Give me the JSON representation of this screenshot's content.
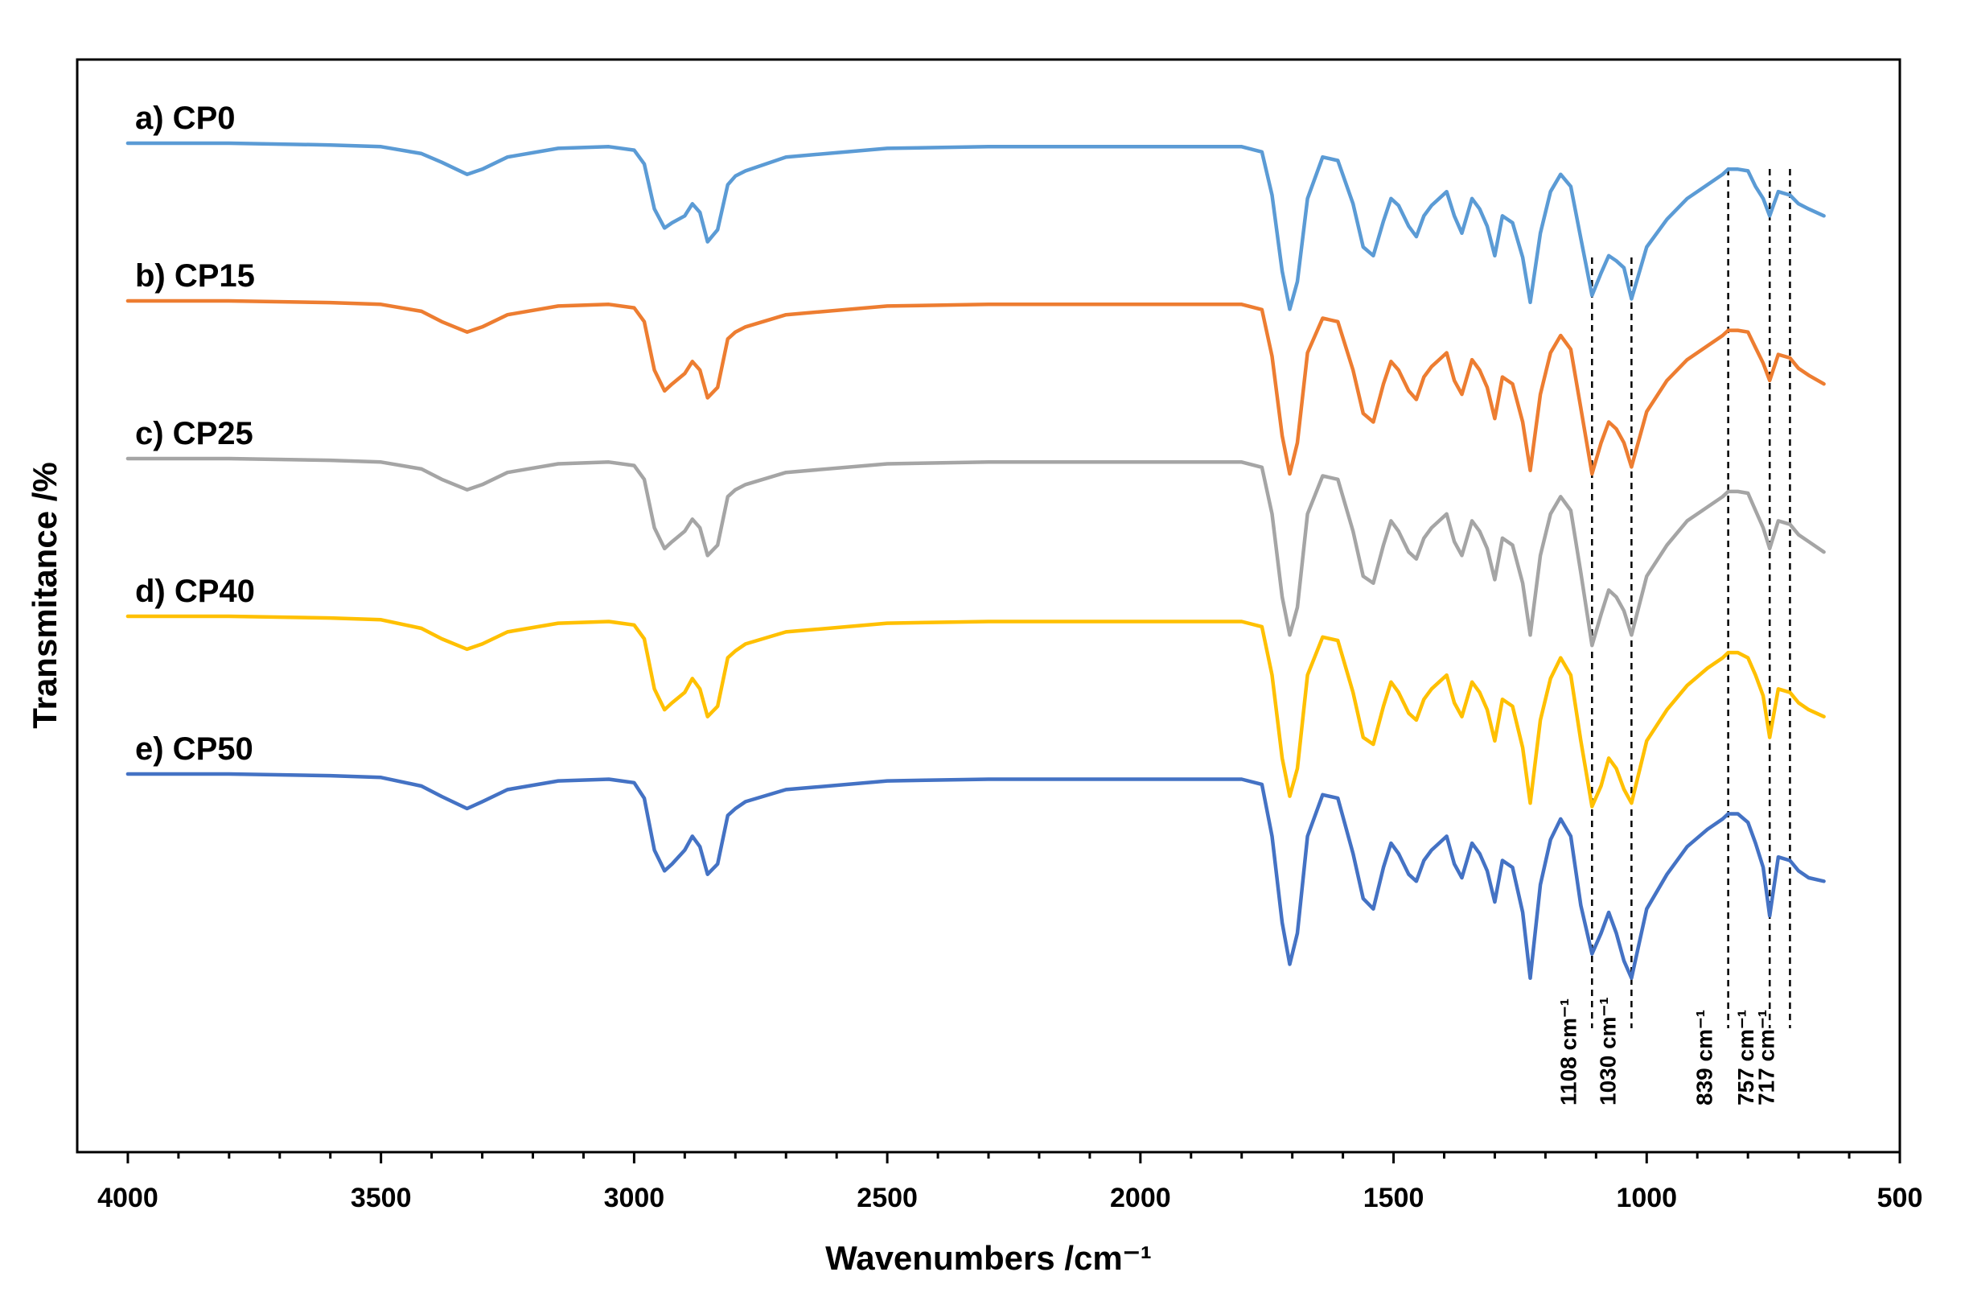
{
  "chart_data": {
    "type": "line",
    "title": "",
    "xlabel": "Wavenumbers /cm⁻¹",
    "ylabel": "Transmitance /%",
    "xlim": [
      4000,
      500
    ],
    "x_reversed": true,
    "x_ticks": [
      4000,
      3500,
      3000,
      2500,
      2000,
      1500,
      1000,
      500
    ],
    "y_ticks_shown": false,
    "grid": false,
    "legend": "none",
    "series": [
      {
        "name": "a) CP0",
        "color": "#5B9BD5"
      },
      {
        "name": "b) CP15",
        "color": "#ED7D31"
      },
      {
        "name": "c) CP25",
        "color": "#A5A5A5"
      },
      {
        "name": "d) CP40",
        "color": "#FFC000"
      },
      {
        "name": "e) CP50",
        "color": "#4472C4"
      }
    ],
    "x": [
      4000,
      3800,
      3600,
      3500,
      3420,
      3380,
      3330,
      3300,
      3250,
      3150,
      3050,
      3000,
      2980,
      2960,
      2940,
      2925,
      2900,
      2885,
      2870,
      2855,
      2835,
      2815,
      2800,
      2780,
      2700,
      2500,
      2300,
      2000,
      1800,
      1760,
      1740,
      1720,
      1705,
      1690,
      1670,
      1640,
      1610,
      1580,
      1560,
      1540,
      1520,
      1505,
      1490,
      1470,
      1455,
      1440,
      1425,
      1410,
      1395,
      1380,
      1365,
      1345,
      1330,
      1315,
      1300,
      1285,
      1265,
      1245,
      1230,
      1210,
      1190,
      1170,
      1150,
      1130,
      1108,
      1090,
      1075,
      1060,
      1045,
      1030,
      1000,
      960,
      920,
      880,
      850,
      839,
      820,
      800,
      785,
      770,
      757,
      740,
      717,
      700,
      680,
      650
    ],
    "baseline_offsets": [
      0.0,
      1.0,
      2.0,
      3.0,
      4.0
    ],
    "profiles": {
      "CP0": [
        0,
        0,
        0.01,
        0.02,
        0.06,
        0.11,
        0.18,
        0.15,
        0.08,
        0.03,
        0.02,
        0.04,
        0.12,
        0.38,
        0.49,
        0.46,
        0.42,
        0.35,
        0.4,
        0.57,
        0.5,
        0.24,
        0.19,
        0.16,
        0.08,
        0.03,
        0.02,
        0.02,
        0.02,
        0.05,
        0.3,
        0.74,
        0.96,
        0.8,
        0.32,
        0.08,
        0.1,
        0.35,
        0.6,
        0.65,
        0.45,
        0.32,
        0.36,
        0.48,
        0.54,
        0.42,
        0.36,
        0.32,
        0.28,
        0.42,
        0.52,
        0.32,
        0.38,
        0.48,
        0.65,
        0.42,
        0.46,
        0.66,
        0.92,
        0.52,
        0.28,
        0.18,
        0.25,
        0.55,
        0.88,
        0.75,
        0.65,
        0.68,
        0.72,
        0.9,
        0.6,
        0.44,
        0.32,
        0.24,
        0.18,
        0.15,
        0.15,
        0.16,
        0.25,
        0.32,
        0.42,
        0.28,
        0.3,
        0.35,
        0.38,
        0.42
      ],
      "CP15": [
        0,
        0,
        0.01,
        0.02,
        0.06,
        0.12,
        0.18,
        0.15,
        0.08,
        0.03,
        0.02,
        0.04,
        0.12,
        0.4,
        0.52,
        0.48,
        0.42,
        0.35,
        0.4,
        0.56,
        0.5,
        0.22,
        0.18,
        0.15,
        0.08,
        0.03,
        0.02,
        0.02,
        0.02,
        0.05,
        0.32,
        0.78,
        1.0,
        0.82,
        0.3,
        0.1,
        0.12,
        0.4,
        0.65,
        0.7,
        0.48,
        0.35,
        0.4,
        0.52,
        0.57,
        0.44,
        0.38,
        0.34,
        0.3,
        0.46,
        0.54,
        0.34,
        0.4,
        0.5,
        0.68,
        0.44,
        0.48,
        0.7,
        0.98,
        0.54,
        0.3,
        0.2,
        0.28,
        0.62,
        1.0,
        0.82,
        0.7,
        0.74,
        0.82,
        0.96,
        0.64,
        0.46,
        0.34,
        0.26,
        0.2,
        0.17,
        0.17,
        0.18,
        0.27,
        0.36,
        0.46,
        0.31,
        0.33,
        0.39,
        0.43,
        0.48
      ],
      "CP25": [
        0,
        0,
        0.01,
        0.02,
        0.06,
        0.12,
        0.18,
        0.15,
        0.08,
        0.03,
        0.02,
        0.04,
        0.12,
        0.4,
        0.52,
        0.48,
        0.42,
        0.35,
        0.4,
        0.56,
        0.5,
        0.22,
        0.18,
        0.15,
        0.08,
        0.03,
        0.02,
        0.02,
        0.02,
        0.05,
        0.32,
        0.8,
        1.02,
        0.86,
        0.32,
        0.1,
        0.12,
        0.42,
        0.68,
        0.72,
        0.5,
        0.36,
        0.42,
        0.54,
        0.58,
        0.46,
        0.4,
        0.36,
        0.32,
        0.48,
        0.56,
        0.36,
        0.42,
        0.52,
        0.7,
        0.46,
        0.5,
        0.72,
        1.02,
        0.56,
        0.32,
        0.22,
        0.3,
        0.66,
        1.08,
        0.9,
        0.76,
        0.8,
        0.88,
        1.02,
        0.68,
        0.5,
        0.36,
        0.28,
        0.22,
        0.19,
        0.19,
        0.2,
        0.3,
        0.4,
        0.52,
        0.36,
        0.38,
        0.44,
        0.48,
        0.54
      ],
      "CP40": [
        0,
        0,
        0.01,
        0.02,
        0.07,
        0.13,
        0.19,
        0.16,
        0.09,
        0.04,
        0.03,
        0.05,
        0.13,
        0.42,
        0.54,
        0.5,
        0.44,
        0.36,
        0.42,
        0.58,
        0.52,
        0.24,
        0.2,
        0.16,
        0.09,
        0.04,
        0.03,
        0.03,
        0.03,
        0.06,
        0.34,
        0.82,
        1.04,
        0.88,
        0.34,
        0.12,
        0.14,
        0.44,
        0.7,
        0.74,
        0.52,
        0.38,
        0.44,
        0.56,
        0.6,
        0.48,
        0.42,
        0.38,
        0.34,
        0.5,
        0.58,
        0.38,
        0.44,
        0.54,
        0.72,
        0.48,
        0.52,
        0.76,
        1.08,
        0.6,
        0.36,
        0.24,
        0.34,
        0.72,
        1.1,
        0.98,
        0.82,
        0.88,
        1.0,
        1.08,
        0.72,
        0.54,
        0.4,
        0.3,
        0.24,
        0.21,
        0.21,
        0.24,
        0.34,
        0.46,
        0.7,
        0.42,
        0.44,
        0.5,
        0.54,
        0.58
      ],
      "CP50": [
        0,
        0,
        0.01,
        0.02,
        0.07,
        0.13,
        0.2,
        0.16,
        0.09,
        0.04,
        0.03,
        0.05,
        0.14,
        0.44,
        0.56,
        0.52,
        0.44,
        0.36,
        0.42,
        0.58,
        0.52,
        0.24,
        0.2,
        0.16,
        0.09,
        0.04,
        0.03,
        0.03,
        0.03,
        0.06,
        0.36,
        0.86,
        1.1,
        0.92,
        0.36,
        0.12,
        0.14,
        0.46,
        0.72,
        0.78,
        0.54,
        0.4,
        0.46,
        0.58,
        0.62,
        0.5,
        0.44,
        0.4,
        0.36,
        0.52,
        0.6,
        0.4,
        0.46,
        0.56,
        0.74,
        0.5,
        0.54,
        0.8,
        1.18,
        0.64,
        0.38,
        0.26,
        0.36,
        0.76,
        1.04,
        0.92,
        0.8,
        0.92,
        1.08,
        1.18,
        0.78,
        0.58,
        0.42,
        0.32,
        0.26,
        0.23,
        0.23,
        0.28,
        0.4,
        0.54,
        0.82,
        0.48,
        0.5,
        0.56,
        0.6,
        0.62
      ]
    },
    "annotations": [
      {
        "x": 1108,
        "label": "1108 cm⁻¹"
      },
      {
        "x": 1030,
        "label": "1030 cm⁻¹"
      },
      {
        "x": 839,
        "label": "839 cm⁻¹"
      },
      {
        "x": 757,
        "label": "757 cm⁻¹"
      },
      {
        "x": 717,
        "label": "717 cm⁻¹"
      }
    ]
  }
}
